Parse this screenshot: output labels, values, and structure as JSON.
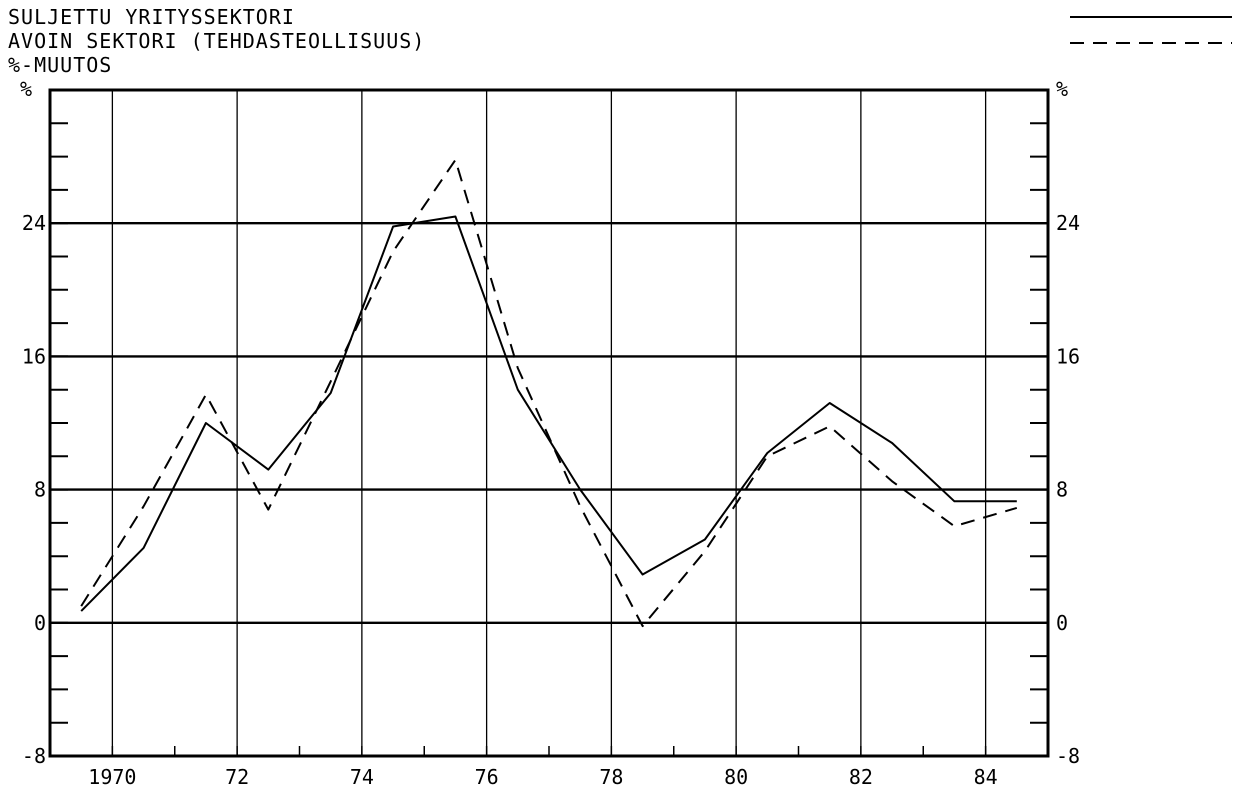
{
  "legend": {
    "series1_label": "SULJETTU YRITYSSEKTORI",
    "series2_label": "AVOIN SEKTORI (TEHDASTEOLLISUUS)",
    "unit_label": "%-MUUTOS"
  },
  "chart_data": {
    "type": "line",
    "ylabel_left": "%",
    "ylabel_right": "%",
    "ylim": [
      -8,
      32
    ],
    "y_ticks": [
      -8,
      0,
      8,
      16,
      24
    ],
    "xlim": [
      1969,
      1985
    ],
    "x_tick_labels": [
      {
        "x": 1970,
        "label": "1970"
      },
      {
        "x": 1972,
        "label": "72"
      },
      {
        "x": 1974,
        "label": "74"
      },
      {
        "x": 1976,
        "label": "76"
      },
      {
        "x": 1978,
        "label": "78"
      },
      {
        "x": 1980,
        "label": "80"
      },
      {
        "x": 1982,
        "label": "82"
      },
      {
        "x": 1984,
        "label": "84"
      }
    ],
    "grid": true,
    "legend_position": "top-right",
    "series": [
      {
        "name": "SULJETTU YRITYSSEKTORI",
        "style": "solid",
        "x": [
          1969.5,
          1970.5,
          1971.5,
          1972.5,
          1973.5,
          1974.5,
          1975.5,
          1976.5,
          1977.5,
          1978.5,
          1979.5,
          1980.5,
          1981.5,
          1982.5,
          1983.5,
          1984.5
        ],
        "y": [
          0.7,
          4.5,
          12.0,
          9.2,
          13.8,
          23.8,
          24.4,
          14.0,
          8.0,
          2.9,
          5.0,
          10.2,
          13.2,
          10.8,
          7.3,
          7.3
        ]
      },
      {
        "name": "AVOIN SEKTORI (TEHDASTEOLLISUUS)",
        "style": "dashed",
        "x": [
          1969.5,
          1970.5,
          1971.5,
          1972.5,
          1973.5,
          1974.5,
          1975.5,
          1976.5,
          1977.5,
          1978.5,
          1979.5,
          1980.5,
          1981.5,
          1982.5,
          1983.5,
          1984.5
        ],
        "y": [
          1.0,
          7.0,
          13.7,
          6.8,
          14.5,
          22.3,
          27.8,
          15.3,
          7.0,
          -0.2,
          4.3,
          10.0,
          11.8,
          8.5,
          5.8,
          6.9
        ]
      }
    ]
  }
}
